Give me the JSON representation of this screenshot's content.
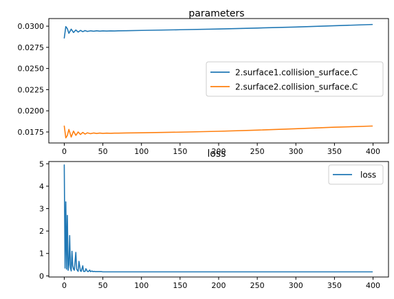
{
  "chart_data": [
    {
      "type": "line",
      "title": "parameters",
      "xlabel": "",
      "ylabel": "",
      "xlim": [
        -20,
        420
      ],
      "ylim": [
        0.0162,
        0.0309
      ],
      "x_ticks": [
        0,
        50,
        100,
        150,
        200,
        250,
        300,
        350,
        400
      ],
      "x_tick_labels": [
        "0",
        "50",
        "100",
        "150",
        "200",
        "250",
        "300",
        "350",
        "400"
      ],
      "y_ticks": [
        0.0175,
        0.02,
        0.0225,
        0.025,
        0.0275,
        0.03
      ],
      "y_tick_labels": [
        "0.0175",
        "0.0200",
        "0.0225",
        "0.0250",
        "0.0275",
        "0.0300"
      ],
      "grid": false,
      "legend_position": "center-right",
      "series": [
        {
          "name": "2.surface1.collision_surface.C",
          "color": "#1f77b4",
          "x": [
            0,
            2,
            4,
            6,
            9,
            12,
            15,
            18,
            21,
            24,
            27,
            30,
            34,
            38,
            42,
            46,
            50,
            55,
            60,
            65,
            70,
            80,
            100,
            150,
            200,
            250,
            300,
            350,
            399
          ],
          "y": [
            0.0286,
            0.02995,
            0.0297,
            0.02915,
            0.02965,
            0.02925,
            0.02955,
            0.0293,
            0.0295,
            0.02935,
            0.02948,
            0.02938,
            0.02945,
            0.0294,
            0.02945,
            0.02941,
            0.02944,
            0.02942,
            0.02944,
            0.02943,
            0.02945,
            0.02946,
            0.0295,
            0.02958,
            0.02967,
            0.02978,
            0.0299,
            0.03005,
            0.0302
          ]
        },
        {
          "name": "2.surface2.collision_surface.C",
          "color": "#ff7f0e",
          "x": [
            0,
            2,
            4,
            6,
            9,
            12,
            15,
            18,
            21,
            24,
            27,
            30,
            34,
            38,
            42,
            46,
            50,
            55,
            60,
            65,
            70,
            80,
            100,
            150,
            200,
            250,
            300,
            350,
            399
          ],
          "y": [
            0.0182,
            0.0168,
            0.0171,
            0.0178,
            0.0169,
            0.0176,
            0.0171,
            0.0175,
            0.0172,
            0.01745,
            0.01725,
            0.0174,
            0.0173,
            0.01738,
            0.01732,
            0.01737,
            0.01733,
            0.01736,
            0.01734,
            0.01736,
            0.01736,
            0.01738,
            0.0174,
            0.01748,
            0.01758,
            0.01772,
            0.01788,
            0.01806,
            0.0182
          ]
        }
      ]
    },
    {
      "type": "line",
      "title": "loss",
      "xlabel": "",
      "ylabel": "",
      "xlim": [
        -20,
        420
      ],
      "ylim": [
        -0.05,
        5.1
      ],
      "x_ticks": [
        0,
        50,
        100,
        150,
        200,
        250,
        300,
        350,
        400
      ],
      "x_tick_labels": [
        "0",
        "50",
        "100",
        "150",
        "200",
        "250",
        "300",
        "350",
        "400"
      ],
      "y_ticks": [
        0,
        1,
        2,
        3,
        4,
        5
      ],
      "y_tick_labels": [
        "0",
        "1",
        "2",
        "3",
        "4",
        "5"
      ],
      "grid": false,
      "legend_position": "upper-right",
      "series": [
        {
          "name": "loss",
          "color": "#1f77b4",
          "x": [
            0,
            1,
            2,
            3,
            4,
            5,
            6,
            7,
            8,
            9,
            10,
            11,
            12,
            13,
            15,
            16,
            18,
            19,
            21,
            22,
            24,
            25,
            27,
            28,
            30,
            31,
            33,
            34,
            36,
            37,
            39,
            40,
            42,
            44,
            46,
            48,
            50,
            55,
            60,
            80,
            100,
            200,
            300,
            399
          ],
          "y": [
            4.95,
            0.35,
            3.3,
            0.3,
            2.7,
            0.25,
            0.5,
            1.8,
            0.35,
            0.22,
            1.1,
            0.45,
            0.3,
            0.25,
            1.05,
            0.3,
            0.2,
            0.65,
            0.22,
            0.2,
            0.45,
            0.2,
            0.2,
            0.32,
            0.2,
            0.19,
            0.26,
            0.19,
            0.22,
            0.19,
            0.2,
            0.19,
            0.19,
            0.19,
            0.19,
            0.19,
            0.18,
            0.18,
            0.18,
            0.18,
            0.18,
            0.18,
            0.18,
            0.18
          ]
        }
      ]
    }
  ]
}
